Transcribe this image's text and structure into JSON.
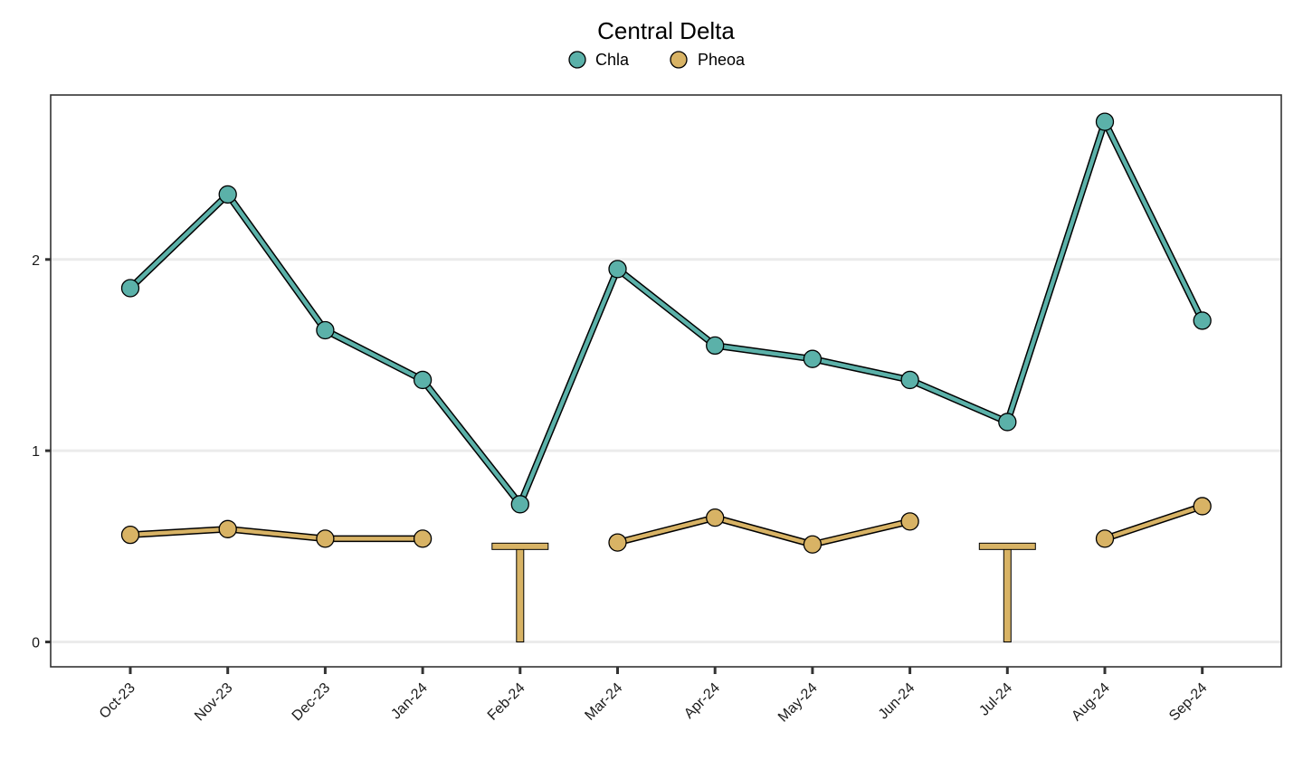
{
  "chart_data": {
    "type": "line",
    "title": "Central Delta",
    "xlabel": "",
    "ylabel": "",
    "categories": [
      "Oct-23",
      "Nov-23",
      "Dec-23",
      "Jan-24",
      "Feb-24",
      "Mar-24",
      "Apr-24",
      "May-24",
      "Jun-24",
      "Jul-24",
      "Aug-24",
      "Sep-24"
    ],
    "series": [
      {
        "name": "Chla",
        "color": "#5bb1a9",
        "values": [
          1.85,
          2.34,
          1.63,
          1.37,
          0.72,
          1.95,
          1.55,
          1.48,
          1.37,
          1.15,
          2.72,
          1.68
        ]
      },
      {
        "name": "Pheoa",
        "color": "#d8b365",
        "values": [
          0.56,
          0.59,
          0.54,
          0.54,
          null,
          0.52,
          0.65,
          0.51,
          0.63,
          null,
          0.54,
          0.71
        ],
        "below_reporting_limit": [
          {
            "category": "Feb-24",
            "limit": 0.5
          },
          {
            "category": "Jul-24",
            "limit": 0.5
          }
        ]
      }
    ],
    "y_ticks": [
      "0",
      "1",
      "2"
    ],
    "ylim": [
      -0.13,
      2.86
    ],
    "grid": "horizontal major only",
    "legend_position": "top"
  }
}
